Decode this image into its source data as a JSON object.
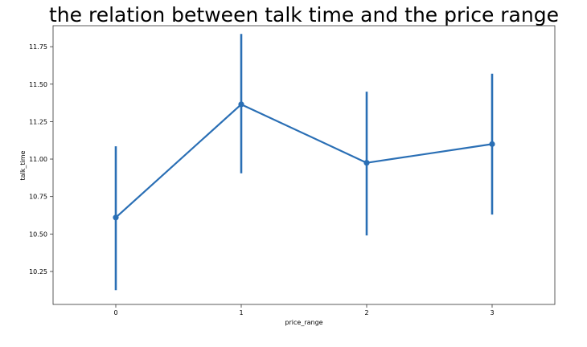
{
  "chart_data": {
    "type": "line",
    "title": "the relation between talk time and the price range",
    "xlabel": "price_range",
    "ylabel": "talk_time",
    "categories": [
      "0",
      "1",
      "2",
      "3"
    ],
    "series": [
      {
        "values": [
          10.61,
          11.365,
          10.975,
          11.1
        ],
        "ci_low": [
          10.125,
          10.905,
          10.49,
          10.63
        ],
        "ci_high": [
          11.085,
          11.835,
          11.45,
          11.57
        ]
      }
    ],
    "yticks": [
      "10.25",
      "10.50",
      "10.75",
      "11.00",
      "11.25",
      "11.50",
      "11.75"
    ],
    "ylim": [
      10.03,
      11.89
    ],
    "xlim": [
      -0.5,
      3.5
    ],
    "grid": false,
    "color": "#2a6fb5"
  }
}
